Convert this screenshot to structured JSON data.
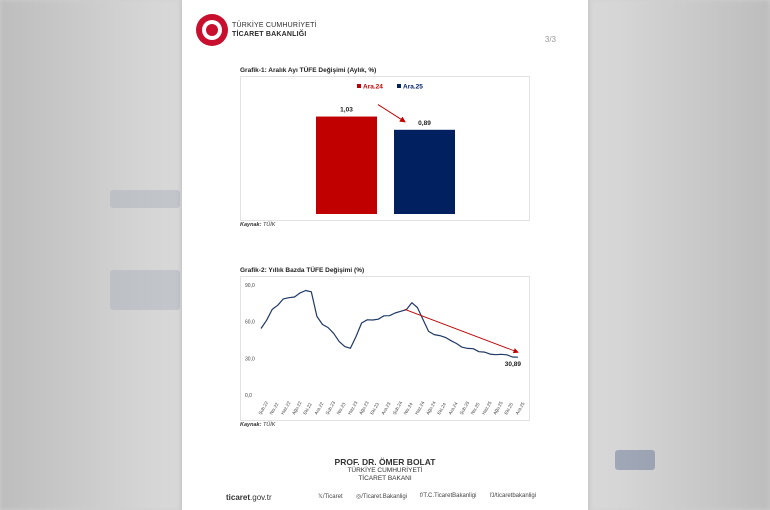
{
  "header": {
    "org_line1": "TÜRKİYE CUMHURİYETİ",
    "org_line2": "TİCARET BAKANLIĞI",
    "page_number": "3/3"
  },
  "chart1": {
    "title": "Grafik-1: Aralık Ayı TÜFE Değişimi (Aylık, %)",
    "source_label": "Kaynak:",
    "source_value": "TÜİK"
  },
  "chart2": {
    "title": "Grafik-2: Yıllık Bazda TÜFE Değişimi (%)",
    "source_label": "Kaynak:",
    "source_value": "TÜİK"
  },
  "chart_data": [
    {
      "type": "bar",
      "title": "Grafik-1: Aralık Ayı TÜFE Değişimi (Aylık, %)",
      "categories": [
        "Ara.24",
        "Ara.25"
      ],
      "values": [
        1.03,
        0.89
      ],
      "data_labels": [
        "1,03",
        "0,89"
      ],
      "colors": [
        "#c00000",
        "#002060"
      ],
      "legend": [
        "Ara.24",
        "Ara.25"
      ],
      "legend_position": "top-right",
      "ylim": [
        0,
        1.3
      ],
      "grid": false,
      "annotation": "arrow from Ara.24 to Ara.25 (decline)"
    },
    {
      "type": "line",
      "title": "Grafik-2: Yıllık Bazda TÜFE Değişimi (%)",
      "x": [
        "Şub.22",
        "Mar.22",
        "Nis.22",
        "May.22",
        "Haz.22",
        "Tem.22",
        "Ağu.22",
        "Eyl.22",
        "Eki.22",
        "Kas.22",
        "Ara.22",
        "Oca.23",
        "Şub.23",
        "Mar.23",
        "Nis.23",
        "May.23",
        "Haz.23",
        "Tem.23",
        "Ağu.23",
        "Eyl.23",
        "Eki.23",
        "Kas.23",
        "Ara.23",
        "Oca.24",
        "Şub.24",
        "Mar.24",
        "Nis.24",
        "May.24",
        "Haz.24",
        "Tem.24",
        "Ağu.24",
        "Eyl.24",
        "Eki.24",
        "Kas.24",
        "Ara.24",
        "Oca.25",
        "Şub.25",
        "Mar.25",
        "Nis.25",
        "May.25",
        "Haz.25",
        "Tem.25",
        "Ağu.25",
        "Eyl.25",
        "Eki.25",
        "Kas.25",
        "Ara.25"
      ],
      "y": [
        54.4,
        61.1,
        70.0,
        73.5,
        78.6,
        79.6,
        80.2,
        83.5,
        85.5,
        84.4,
        64.3,
        57.7,
        55.2,
        50.5,
        43.7,
        39.6,
        38.2,
        47.8,
        58.9,
        61.5,
        61.4,
        62.0,
        64.8,
        64.9,
        67.1,
        68.5,
        69.8,
        75.5,
        71.6,
        61.8,
        52.0,
        49.4,
        48.6,
        47.1,
        44.4,
        42.1,
        39.1,
        38.1,
        37.9,
        35.4,
        35.1,
        33.5,
        33.0,
        33.3,
        32.9,
        31.1,
        30.89
      ],
      "tick_labels": [
        "Şub.22",
        "Nis.22",
        "Haz.22",
        "Ağu.22",
        "Eki.22",
        "Ara.22",
        "Şub.23",
        "Nis.23",
        "Haz.23",
        "Ağu.23",
        "Eki.23",
        "Ara.23",
        "Şub.24",
        "Nis.24",
        "Haz.24",
        "Ağu.24",
        "Eki.24",
        "Ara.24",
        "Şub.25",
        "Nis.25",
        "Haz.25",
        "Ağu.25",
        "Eki.25",
        "Ara.25"
      ],
      "yticks": [
        "0,0",
        "30,0",
        "60,0",
        "90,0"
      ],
      "ylim": [
        0,
        90
      ],
      "end_label": "30,89",
      "series_color": "#1f3864",
      "trend_arrow_color": "#c00000",
      "grid": false
    }
  ],
  "signature": {
    "name": "PROF. DR. ÖMER BOLAT",
    "line1": "TÜRKİYE CUMHURİYETİ",
    "line2": "TİCARET BAKANI"
  },
  "footer": {
    "website_bold": "ticaret",
    "website_rest": ".gov.tr",
    "social": [
      {
        "icon": "x-icon",
        "glyph": "𝕏",
        "text": "/Ticaret"
      },
      {
        "icon": "instagram-icon",
        "glyph": "◎",
        "text": "/Ticaret.Bakanligi"
      },
      {
        "icon": "facebook-icon",
        "glyph": "f",
        "text": "/T.C.TicaretBakanligi"
      },
      {
        "icon": "nsosyal-icon",
        "glyph": "Ŋ",
        "text": "/ticaretbakanligi"
      }
    ]
  }
}
